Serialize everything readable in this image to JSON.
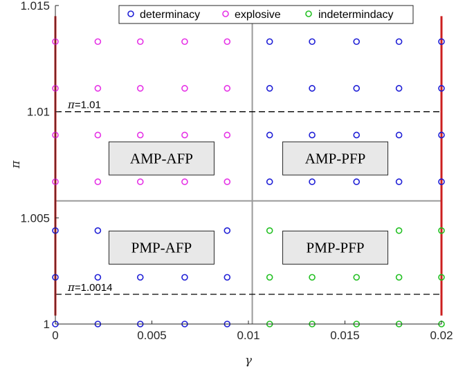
{
  "chart_data": {
    "type": "scatter",
    "title": "",
    "xlabel": "γ",
    "ylabel": "π",
    "xlim": [
      0,
      0.02
    ],
    "ylim": [
      1,
      1.015
    ],
    "x_ticks": [
      0,
      0.005,
      0.01,
      0.015,
      0.02
    ],
    "x_tick_labels": [
      "0",
      "0.005",
      "0.01",
      "0.015",
      "0.02"
    ],
    "y_ticks": [
      1,
      1.005,
      1.01,
      1.015
    ],
    "y_tick_labels": [
      "1",
      "1.005",
      "1.01",
      "1.015"
    ],
    "grid": false,
    "legend_position": "top",
    "colors": {
      "determinacy": "#1f1fd6",
      "explosive": "#e632e6",
      "indetermindacy": "#22c022",
      "boundary": "#cc1f1f",
      "divider": "#9a9a9a"
    },
    "series": [
      {
        "name": "determinacy",
        "points": [
          [
            0,
            1
          ],
          [
            0.0022,
            1
          ],
          [
            0.0044,
            1
          ],
          [
            0.0067,
            1
          ],
          [
            0.0089,
            1
          ],
          [
            0,
            1.0022
          ],
          [
            0.0022,
            1.0022
          ],
          [
            0.0044,
            1.0022
          ],
          [
            0.0067,
            1.0022
          ],
          [
            0.0089,
            1.0022
          ],
          [
            0,
            1.0044
          ],
          [
            0.0022,
            1.0044
          ],
          [
            0.0089,
            1.0044
          ],
          [
            0.0111,
            1.0067
          ],
          [
            0.0133,
            1.0067
          ],
          [
            0.0156,
            1.0067
          ],
          [
            0.0178,
            1.0067
          ],
          [
            0.02,
            1.0067
          ],
          [
            0.0111,
            1.0089
          ],
          [
            0.0133,
            1.0089
          ],
          [
            0.0156,
            1.0089
          ],
          [
            0.0178,
            1.0089
          ],
          [
            0.02,
            1.0089
          ],
          [
            0.0111,
            1.0111
          ],
          [
            0.0133,
            1.0111
          ],
          [
            0.0156,
            1.0111
          ],
          [
            0.0178,
            1.0111
          ],
          [
            0.02,
            1.0111
          ],
          [
            0.0111,
            1.0133
          ],
          [
            0.0133,
            1.0133
          ],
          [
            0.0156,
            1.0133
          ],
          [
            0.0178,
            1.0133
          ],
          [
            0.02,
            1.0133
          ]
        ]
      },
      {
        "name": "explosive",
        "points": [
          [
            0,
            1.0067
          ],
          [
            0.0022,
            1.0067
          ],
          [
            0.0044,
            1.0067
          ],
          [
            0.0067,
            1.0067
          ],
          [
            0.0089,
            1.0067
          ],
          [
            0,
            1.0089
          ],
          [
            0.0022,
            1.0089
          ],
          [
            0.0044,
            1.0089
          ],
          [
            0.0067,
            1.0089
          ],
          [
            0.0089,
            1.0089
          ],
          [
            0,
            1.0111
          ],
          [
            0.0022,
            1.0111
          ],
          [
            0.0044,
            1.0111
          ],
          [
            0.0067,
            1.0111
          ],
          [
            0.0089,
            1.0111
          ],
          [
            0,
            1.0133
          ],
          [
            0.0022,
            1.0133
          ],
          [
            0.0044,
            1.0133
          ],
          [
            0.0067,
            1.0133
          ],
          [
            0.0089,
            1.0133
          ]
        ]
      },
      {
        "name": "indetermindacy",
        "points": [
          [
            0.0111,
            1
          ],
          [
            0.0133,
            1
          ],
          [
            0.0156,
            1
          ],
          [
            0.0178,
            1
          ],
          [
            0.02,
            1
          ],
          [
            0.0111,
            1.0022
          ],
          [
            0.0133,
            1.0022
          ],
          [
            0.0156,
            1.0022
          ],
          [
            0.0178,
            1.0022
          ],
          [
            0.02,
            1.0022
          ],
          [
            0.0111,
            1.0044
          ],
          [
            0.0178,
            1.0044
          ],
          [
            0.02,
            1.0044
          ]
        ]
      }
    ],
    "boundary_lines": [
      {
        "x": 0,
        "y_range": [
          1.0004,
          1.0145
        ]
      },
      {
        "x": 0.02,
        "y_range": [
          1.0004,
          1.0145
        ]
      }
    ],
    "divider_lines": {
      "x": 0.0102,
      "y": 1.0058
    },
    "reference_lines": [
      {
        "y": 1.01,
        "label": "π=1.01",
        "label_symbol": "π",
        "label_value": "=1.01"
      },
      {
        "y": 1.0014,
        "label": "π=1.0014",
        "label_symbol": "π",
        "label_value": "=1.0014"
      }
    ],
    "region_labels": [
      {
        "text": "AMP-AFP",
        "x": 0.0055,
        "y": 1.0078
      },
      {
        "text": "AMP-PFP",
        "x": 0.0145,
        "y": 1.0078
      },
      {
        "text": "PMP-AFP",
        "x": 0.0055,
        "y": 1.0036
      },
      {
        "text": "PMP-PFP",
        "x": 0.0145,
        "y": 1.0036
      }
    ]
  }
}
